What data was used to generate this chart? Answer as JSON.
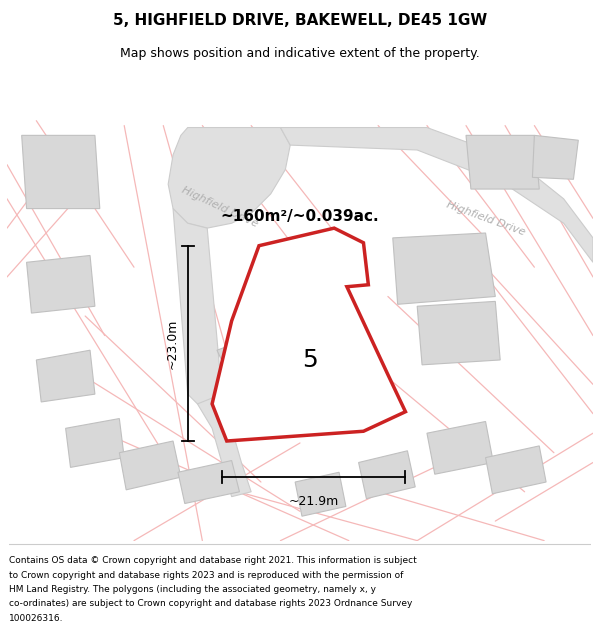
{
  "title": "5, HIGHFIELD DRIVE, BAKEWELL, DE45 1GW",
  "subtitle": "Map shows position and indicative extent of the property.",
  "footer": "Contains OS data © Crown copyright and database right 2021. This information is subject to Crown copyright and database rights 2023 and is reproduced with the permission of HM Land Registry. The polygons (including the associated geometry, namely x, y co-ordinates) are subject to Crown copyright and database rights 2023 Ordnance Survey 100026316.",
  "area_label": "~160m²/~0.039ac.",
  "width_label": "~21.9m",
  "height_label": "~23.0m",
  "plot_number": "5",
  "plot_color": "#cc2222",
  "pink_road_color": "#f5b8b8",
  "building_fill": "#d8d8d8",
  "building_edge": "#c0c0c0",
  "road_fill": "#e0e0e0",
  "road_edge": "#cccccc",
  "title_fontsize": 11,
  "subtitle_fontsize": 9,
  "footer_fontsize": 6.5,
  "street_label_color": "#b0b0b0",
  "dim_label_fontsize": 9
}
